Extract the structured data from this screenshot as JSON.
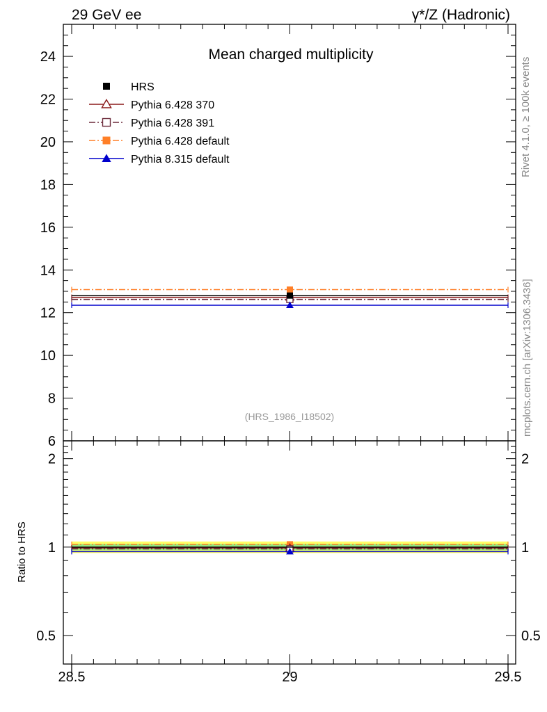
{
  "header": {
    "left": "29 GeV ee",
    "right": "γ*/Z (Hadronic)"
  },
  "side_labels": {
    "rivet": "Rivet 4.1.0, ≥ 100k events",
    "mcplots": "mcplots.cern.ch [arXiv:1306.3436]"
  },
  "colors": {
    "hrs": "#000000",
    "p6_370": "#8b1a1a",
    "p6_391": "#6b2a3a",
    "p6_default": "#ff7f27",
    "p8_default": "#0000cc",
    "band_yellow": "#ffff66",
    "band_green": "#99e680"
  },
  "chart_data": [
    {
      "type": "line",
      "title": "Mean charged multiplicity",
      "annotation": "(HRS_1986_I18502)",
      "xlabel": "",
      "ylabel": "",
      "xlim": [
        28.5,
        29.5
      ],
      "ylim": [
        6,
        25.5
      ],
      "y_ticks": [
        "6",
        "8",
        "10",
        "12",
        "14",
        "16",
        "18",
        "20",
        "22",
        "24"
      ],
      "legend_position": "top-left",
      "series": [
        {
          "name": "HRS",
          "style": "data",
          "x": 29,
          "y": 12.8,
          "x_range": [
            28.5,
            29.5
          ]
        },
        {
          "name": "Pythia 6.428 370",
          "style": "solid-open-triangle",
          "x": 29,
          "y": 12.72,
          "x_range": [
            28.5,
            29.5
          ]
        },
        {
          "name": "Pythia 6.428 391",
          "style": "dashdot-open-square",
          "x": 29,
          "y": 12.62,
          "x_range": [
            28.5,
            29.5
          ]
        },
        {
          "name": "Pythia 6.428 default",
          "style": "dashdot-filled-square",
          "x": 29,
          "y": 13.08,
          "x_range": [
            28.5,
            29.5
          ]
        },
        {
          "name": "Pythia 8.315 default",
          "style": "solid-filled-triangle",
          "x": 29,
          "y": 12.35,
          "x_range": [
            28.5,
            29.5
          ]
        }
      ]
    },
    {
      "type": "line",
      "title": "",
      "ylabel": "Ratio to HRS",
      "xlim": [
        28.5,
        29.5
      ],
      "ylim": [
        0.4,
        2.3
      ],
      "y_scale": "log",
      "y_ticks": [
        "0.5",
        "1",
        "2"
      ],
      "x_ticks": [
        "28.5",
        "29",
        "29.5"
      ],
      "band": {
        "yellow": [
          0.955,
          1.045
        ],
        "green": [
          0.975,
          1.025
        ]
      },
      "series": [
        {
          "name": "HRS",
          "y": 1.0
        },
        {
          "name": "Pythia 6.428 370",
          "y": 0.994
        },
        {
          "name": "Pythia 6.428 391",
          "y": 0.986
        },
        {
          "name": "Pythia 6.428 default",
          "y": 1.022
        },
        {
          "name": "Pythia 8.315 default",
          "y": 0.965
        }
      ]
    }
  ]
}
